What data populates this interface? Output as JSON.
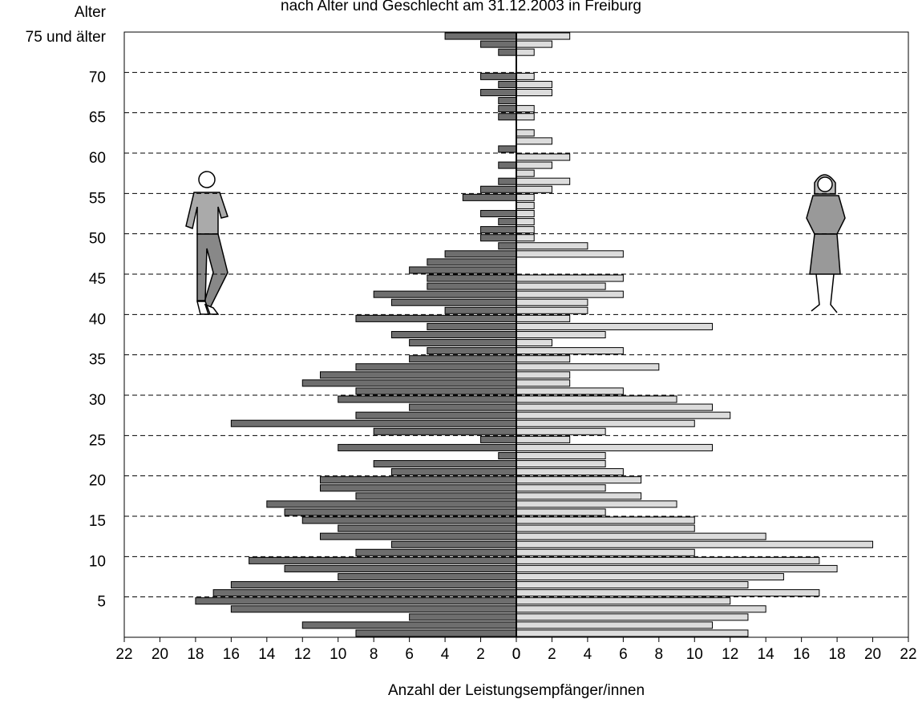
{
  "chart_data": {
    "type": "pyramid",
    "title": "nach Alter und Geschlecht am 31.12.2003 in Freiburg",
    "y_label": "Alter",
    "x_label": "Anzahl der Leistungsempfänger/innen",
    "categories": [
      null,
      null,
      null,
      null,
      "5",
      null,
      null,
      null,
      null,
      "10",
      null,
      null,
      null,
      null,
      "15",
      null,
      null,
      null,
      null,
      "20",
      null,
      null,
      null,
      null,
      "25",
      null,
      null,
      null,
      null,
      "30",
      null,
      null,
      null,
      null,
      "35",
      null,
      null,
      null,
      null,
      "40",
      null,
      null,
      null,
      null,
      "45",
      null,
      null,
      null,
      null,
      "50",
      null,
      null,
      null,
      null,
      "55",
      null,
      null,
      null,
      null,
      "60",
      null,
      null,
      null,
      null,
      "65",
      null,
      null,
      null,
      null,
      "70",
      null,
      null,
      null,
      null,
      "75 und älter"
    ],
    "series": [
      {
        "side": "left",
        "color": "#6e6e6e",
        "values": [
          9,
          12,
          6,
          16,
          18,
          17,
          16,
          10,
          13,
          15,
          9,
          7,
          11,
          10,
          12,
          13,
          14,
          9,
          11,
          11,
          7,
          8,
          1,
          10,
          2,
          8,
          16,
          9,
          6,
          10,
          9,
          12,
          11,
          9,
          6,
          5,
          6,
          7,
          5,
          9,
          4,
          7,
          8,
          5,
          5,
          6,
          5,
          4,
          1,
          2,
          2,
          1,
          2,
          0,
          3,
          2,
          1,
          0,
          1,
          0,
          1,
          0,
          0,
          0,
          1,
          1,
          1,
          2,
          1,
          2,
          0,
          0,
          1,
          2,
          4
        ]
      },
      {
        "side": "right",
        "color": "#dcdcdc",
        "values": [
          13,
          11,
          13,
          14,
          12,
          17,
          13,
          15,
          18,
          17,
          10,
          20,
          14,
          10,
          10,
          5,
          9,
          7,
          5,
          7,
          6,
          5,
          5,
          11,
          3,
          5,
          10,
          12,
          11,
          9,
          6,
          3,
          3,
          8,
          3,
          6,
          2,
          5,
          11,
          3,
          4,
          4,
          6,
          5,
          6,
          0,
          0,
          6,
          4,
          1,
          1,
          1,
          1,
          1,
          1,
          2,
          3,
          1,
          2,
          3,
          0,
          2,
          1,
          0,
          1,
          1,
          0,
          2,
          2,
          1,
          0,
          0,
          1,
          2,
          3
        ]
      }
    ],
    "xlim": [
      0,
      22
    ],
    "xticks": [
      0,
      2,
      4,
      6,
      8,
      10,
      12,
      14,
      16,
      18,
      20,
      22
    ]
  }
}
